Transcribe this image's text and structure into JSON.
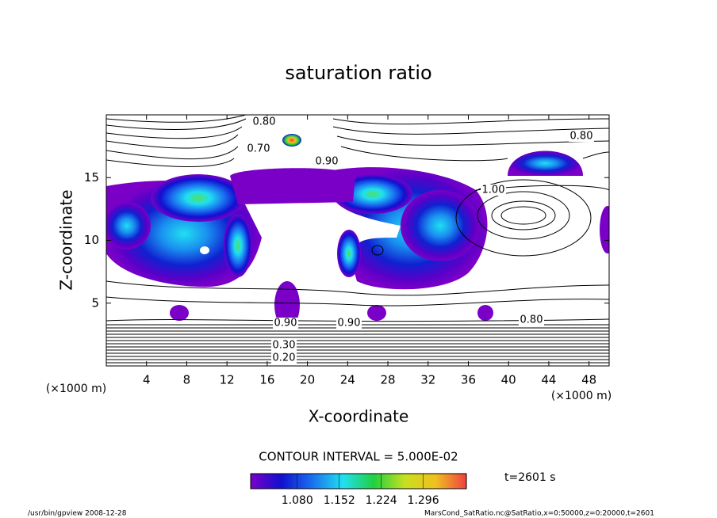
{
  "chart_data": {
    "type": "contour",
    "title": "saturation ratio",
    "x_label": "X-coordinate",
    "y_label": "Z-coordinate",
    "y_unit": "(×1000 m)",
    "x_unit": "(×1000 m)",
    "xlim": [
      0,
      50
    ],
    "xticks": [
      4,
      8,
      12,
      16,
      20,
      24,
      28,
      32,
      36,
      40,
      44,
      48
    ],
    "ylim": [
      0,
      20
    ],
    "yticks": [
      5,
      10,
      15
    ],
    "contour_interval": "CONTOUR INTERVAL = 5.000E-02",
    "contour_labels": [
      "0.80",
      "0.70",
      "0.90",
      "0.80",
      "1.00",
      "0.90",
      "0.90",
      "0.80",
      "0.30",
      "0.20"
    ],
    "colorbar": {
      "clim": [
        1.0,
        1.37
      ],
      "ticks": [
        {
          "value": 1.08,
          "label": "1.080"
        },
        {
          "value": 1.152,
          "label": "1.152"
        },
        {
          "value": 1.224,
          "label": "1.224"
        },
        {
          "value": 1.296,
          "label": "1.296"
        }
      ],
      "colors": [
        "#7a00c8",
        "#1010d0",
        "#1a70f0",
        "#20e0f0",
        "#20d040",
        "#c8e020",
        "#f0c020",
        "#f04040"
      ]
    },
    "time_label": "t=2601 s",
    "footer_left": "/usr/bin/gpview   2008-12-28",
    "footer_right": "MarsCond_SatRatio.nc@SatRatio,x=0:50000,z=0:20000,t=2601"
  }
}
